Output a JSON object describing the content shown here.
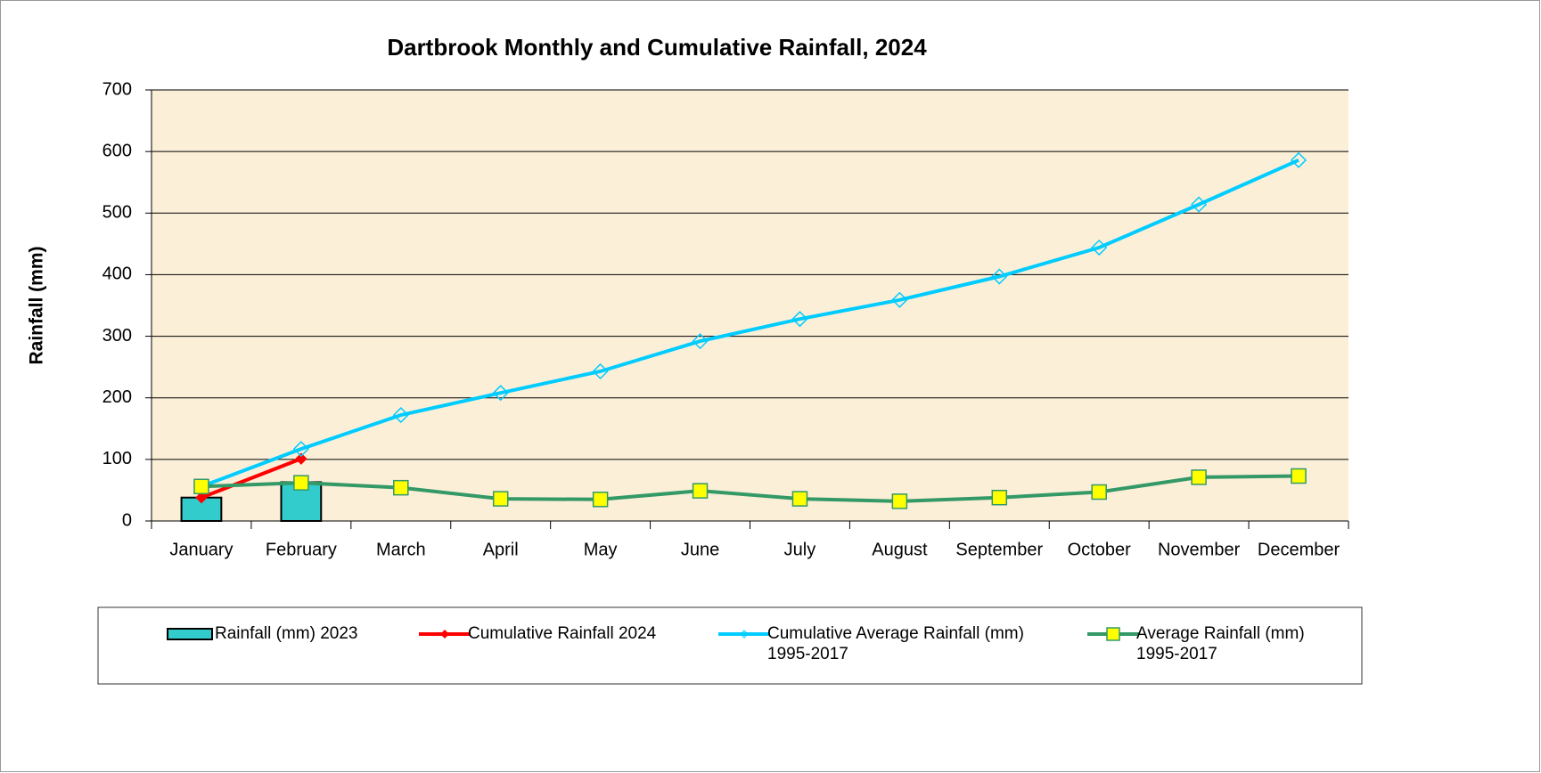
{
  "chart_data": {
    "type": "bar_line",
    "title": "Dartbrook Monthly and Cumulative Rainfall, 2024",
    "y_label": "Rainfall (mm)",
    "categories": [
      "January",
      "February",
      "March",
      "April",
      "May",
      "June",
      "July",
      "August",
      "September",
      "October",
      "November",
      "December"
    ],
    "series": [
      {
        "name": "Rainfall (mm) 2023",
        "type": "bar",
        "color": "#33cccc",
        "values": [
          38,
          63,
          null,
          null,
          null,
          null,
          null,
          null,
          null,
          null,
          null,
          null
        ]
      },
      {
        "name": "Cumulative Rainfall 2024",
        "type": "line",
        "marker": "diamond",
        "color": "#ff0000",
        "values": [
          38,
          101,
          null,
          null,
          null,
          null,
          null,
          null,
          null,
          null,
          null,
          null
        ]
      },
      {
        "name": "Cumulative Average Rainfall (mm) 1995-2017",
        "type": "line",
        "marker": "hollow-diamond",
        "color": "#00ccff",
        "values": [
          56,
          117,
          172,
          208,
          243,
          292,
          328,
          359,
          397,
          444,
          514,
          586
        ]
      },
      {
        "name": "Average Rainfall (mm) 1995-2017",
        "type": "line",
        "marker": "square",
        "color": "#339966",
        "values": [
          56,
          62,
          54,
          36,
          35,
          49,
          36,
          32,
          38,
          47,
          71,
          73
        ]
      }
    ],
    "ylim": [
      0,
      700
    ],
    "yticks": [
      0,
      100,
      200,
      300,
      400,
      500,
      600,
      700
    ],
    "grid": true,
    "legend": "bottom"
  }
}
